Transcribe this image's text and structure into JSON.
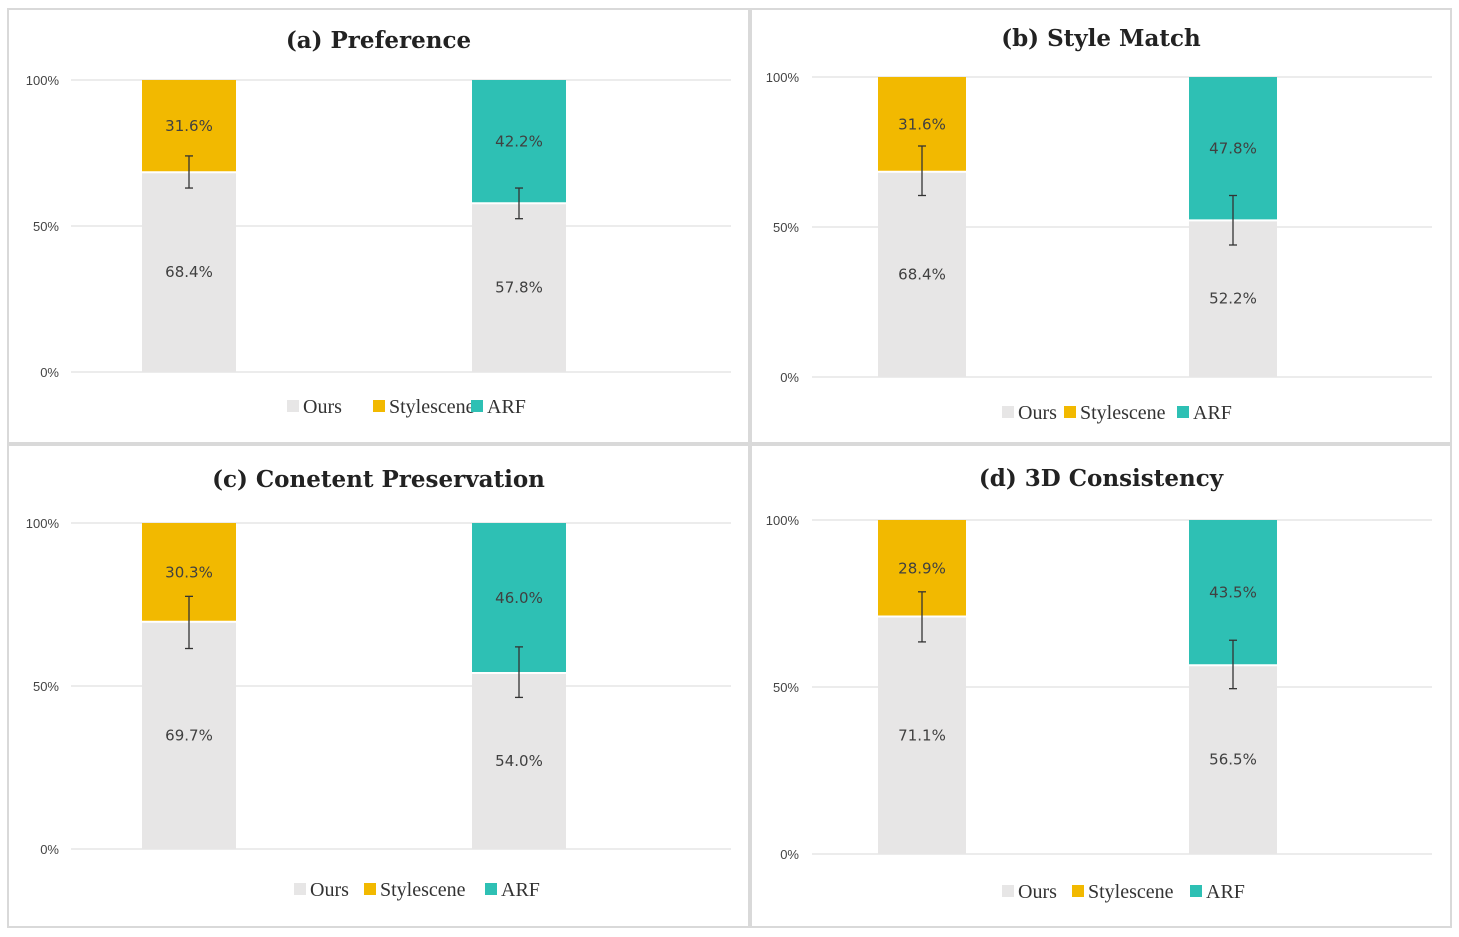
{
  "colors": {
    "ours": "#e7e6e6",
    "stylescene": "#f2b900",
    "arf": "#2ec0b4",
    "grid": "#d9d9d9",
    "errorbar": "#333333"
  },
  "legend": [
    "Ours",
    "Stylescene",
    "ARF"
  ],
  "chart_data": [
    {
      "id": "a",
      "type": "bar",
      "stacked": true,
      "title": "(a) Preference",
      "yticks": [
        "0%",
        "50%",
        "100%"
      ],
      "ylim": [
        0,
        100
      ],
      "bars": [
        {
          "segments": [
            {
              "series": "Ours",
              "value": 68.4,
              "label": "68.4%"
            },
            {
              "series": "Stylescene",
              "value": 31.6,
              "label": "31.6%"
            }
          ],
          "error": [
            63,
            74
          ]
        },
        {
          "segments": [
            {
              "series": "Ours",
              "value": 57.8,
              "label": "57.8%"
            },
            {
              "series": "ARF",
              "value": 42.2,
              "label": "42.2%"
            }
          ],
          "error": [
            52.5,
            63
          ]
        }
      ]
    },
    {
      "id": "b",
      "type": "bar",
      "stacked": true,
      "title": "(b) Style Match",
      "yticks": [
        "0%",
        "50%",
        "100%"
      ],
      "ylim": [
        0,
        100
      ],
      "bars": [
        {
          "segments": [
            {
              "series": "Ours",
              "value": 68.4,
              "label": "68.4%"
            },
            {
              "series": "Stylescene",
              "value": 31.6,
              "label": "31.6%"
            }
          ],
          "error": [
            60.5,
            77
          ]
        },
        {
          "segments": [
            {
              "series": "Ours",
              "value": 52.2,
              "label": "52.2%"
            },
            {
              "series": "ARF",
              "value": 47.8,
              "label": "47.8%"
            }
          ],
          "error": [
            44,
            60.5
          ]
        }
      ]
    },
    {
      "id": "c",
      "type": "bar",
      "stacked": true,
      "title": "(c) Conetent Preservation",
      "yticks": [
        "0%",
        "50%",
        "100%"
      ],
      "ylim": [
        0,
        100
      ],
      "bars": [
        {
          "segments": [
            {
              "series": "Ours",
              "value": 69.7,
              "label": "69.7%"
            },
            {
              "series": "Stylescene",
              "value": 30.3,
              "label": "30.3%"
            }
          ],
          "error": [
            61.5,
            77.5
          ]
        },
        {
          "segments": [
            {
              "series": "Ours",
              "value": 54.0,
              "label": "54.0%"
            },
            {
              "series": "ARF",
              "value": 46.0,
              "label": "46.0%"
            }
          ],
          "error": [
            46.5,
            62
          ]
        }
      ]
    },
    {
      "id": "d",
      "type": "bar",
      "stacked": true,
      "title": "(d) 3D Consistency",
      "yticks": [
        "0%",
        "50%",
        "100%"
      ],
      "ylim": [
        0,
        100
      ],
      "bars": [
        {
          "segments": [
            {
              "series": "Ours",
              "value": 71.1,
              "label": "71.1%"
            },
            {
              "series": "Stylescene",
              "value": 28.9,
              "label": "28.9%"
            }
          ],
          "error": [
            63.5,
            78.5
          ]
        },
        {
          "segments": [
            {
              "series": "Ours",
              "value": 56.5,
              "label": "56.5%"
            },
            {
              "series": "ARF",
              "value": 43.5,
              "label": "43.5%"
            }
          ],
          "error": [
            49.5,
            64
          ]
        }
      ]
    }
  ]
}
